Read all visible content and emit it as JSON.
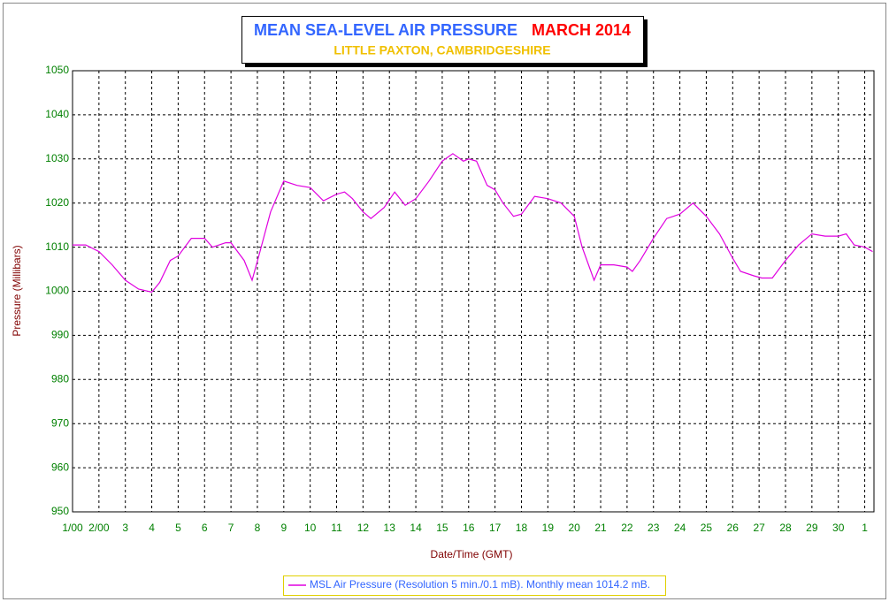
{
  "chart_data": {
    "type": "line",
    "title": "MEAN SEA-LEVEL AIR PRESSURE",
    "title_month": "MARCH 2014",
    "subtitle": "LITTLE PAXTON, CAMBRIDGESHIRE",
    "xlabel": "Date/Time (GMT)",
    "ylabel": "Pressure (Millibars)",
    "grid": true,
    "xlim": [
      0,
      30.35
    ],
    "ylim": [
      950,
      1050
    ],
    "yticks": [
      950,
      960,
      970,
      980,
      990,
      1000,
      1010,
      1020,
      1030,
      1040,
      1050
    ],
    "xticks": [
      {
        "value": 0,
        "label": "1/00"
      },
      {
        "value": 1,
        "label": "2/00"
      },
      {
        "value": 2,
        "label": "3"
      },
      {
        "value": 3,
        "label": "4"
      },
      {
        "value": 4,
        "label": "5"
      },
      {
        "value": 5,
        "label": "6"
      },
      {
        "value": 6,
        "label": "7"
      },
      {
        "value": 7,
        "label": "8"
      },
      {
        "value": 8,
        "label": "9"
      },
      {
        "value": 9,
        "label": "10"
      },
      {
        "value": 10,
        "label": "11"
      },
      {
        "value": 11,
        "label": "12"
      },
      {
        "value": 12,
        "label": "13"
      },
      {
        "value": 13,
        "label": "14"
      },
      {
        "value": 14,
        "label": "15"
      },
      {
        "value": 15,
        "label": "16"
      },
      {
        "value": 16,
        "label": "17"
      },
      {
        "value": 17,
        "label": "18"
      },
      {
        "value": 18,
        "label": "19"
      },
      {
        "value": 19,
        "label": "20"
      },
      {
        "value": 20,
        "label": "21"
      },
      {
        "value": 21,
        "label": "22"
      },
      {
        "value": 22,
        "label": "23"
      },
      {
        "value": 23,
        "label": "24"
      },
      {
        "value": 24,
        "label": "25"
      },
      {
        "value": 25,
        "label": "26"
      },
      {
        "value": 26,
        "label": "27"
      },
      {
        "value": 27,
        "label": "28"
      },
      {
        "value": 28,
        "label": "29"
      },
      {
        "value": 29,
        "label": "30"
      },
      {
        "value": 30,
        "label": "1"
      }
    ],
    "x": [
      0,
      0.5,
      1,
      1.5,
      2,
      2.5,
      3,
      3.3,
      3.7,
      4,
      4.5,
      5,
      5.3,
      5.8,
      6,
      6.5,
      6.8,
      7.1,
      7.5,
      8,
      8.5,
      9,
      9.5,
      10,
      10.3,
      10.6,
      11,
      11.3,
      11.8,
      12.2,
      12.6,
      13,
      13.5,
      14,
      14.4,
      14.8,
      15,
      15.3,
      15.7,
      16,
      16.3,
      16.7,
      17,
      17.5,
      18,
      18.5,
      19,
      19.3,
      19.6,
      19.75,
      20,
      20.5,
      21,
      21.2,
      21.5,
      22,
      22.5,
      23,
      23.5,
      24,
      24.5,
      25,
      25.3,
      25.8,
      26.1,
      26.5,
      27,
      27.5,
      28,
      28.5,
      29,
      29.3,
      29.6,
      30,
      30.3
    ],
    "series": [
      {
        "name": "MSL Air Pressure (Resolution 5 min./0.1 mB). Monthly mean 1014.2 mB.",
        "color": "#e000e0",
        "values": [
          1010.5,
          1010.5,
          1009,
          1006,
          1002.5,
          1000.5,
          999.8,
          1002,
          1007,
          1008,
          1012,
          1012,
          1010,
          1011,
          1011,
          1007,
          1002.5,
          1009,
          1018,
          1025,
          1024,
          1023.5,
          1020.5,
          1022,
          1022.5,
          1021,
          1018,
          1016.5,
          1019,
          1022.5,
          1019.5,
          1021,
          1025,
          1029.5,
          1031.2,
          1029.5,
          1030,
          1029.5,
          1024,
          1023,
          1020,
          1017,
          1017.5,
          1021.5,
          1021,
          1020,
          1017,
          1010,
          1005,
          1002.5,
          1006,
          1006,
          1005.5,
          1004.5,
          1007,
          1012,
          1016.5,
          1017.5,
          1020,
          1017,
          1013,
          1007.5,
          1004.5,
          1003.5,
          1003,
          1003,
          1007,
          1010.5,
          1013,
          1012.5,
          1012.5,
          1013,
          1010.5,
          1010,
          1009
        ]
      }
    ]
  }
}
